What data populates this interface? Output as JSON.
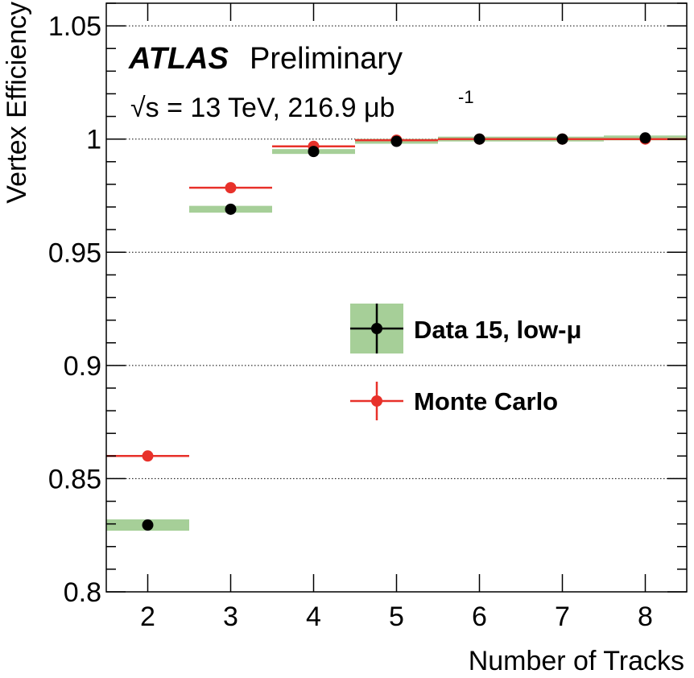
{
  "chart_data": {
    "type": "scatter",
    "xlabel": "Number of Tracks",
    "ylabel": "Vertex Efficiency",
    "xlim": [
      1.5,
      8.5
    ],
    "ylim": [
      0.8,
      1.06
    ],
    "x_ticks": [
      "2",
      "3",
      "4",
      "5",
      "6",
      "7",
      "8"
    ],
    "y_ticks": [
      "0.8",
      "0.85",
      "0.9",
      "0.95",
      "1",
      "1.05"
    ],
    "grid": "horizontal dotted",
    "legend_placement": "center-right",
    "annotations": {
      "experiment": "ATLAS",
      "status": "Preliminary",
      "energy": "√s = 13 TeV, 216.9 μb",
      "energy_exponent": "-1"
    },
    "series": [
      {
        "name": "Data 15, low-μ",
        "color": "#000000",
        "band_color": "#a6cf98",
        "x": [
          2,
          3,
          4,
          5,
          6,
          7,
          8
        ],
        "y": [
          0.8295,
          0.969,
          0.9945,
          0.999,
          1.0,
          1.0,
          1.0005
        ],
        "band_halfwidth": [
          0.0025,
          0.0015,
          0.001,
          0.0007,
          0.0005,
          0.0003,
          0.0003
        ]
      },
      {
        "name": "Monte Carlo",
        "color": "#e8312a",
        "x": [
          2,
          3,
          4,
          5,
          6,
          7,
          8
        ],
        "y": [
          0.86,
          0.9785,
          0.9968,
          0.9995,
          1.0,
          1.0,
          1.0
        ]
      }
    ]
  }
}
